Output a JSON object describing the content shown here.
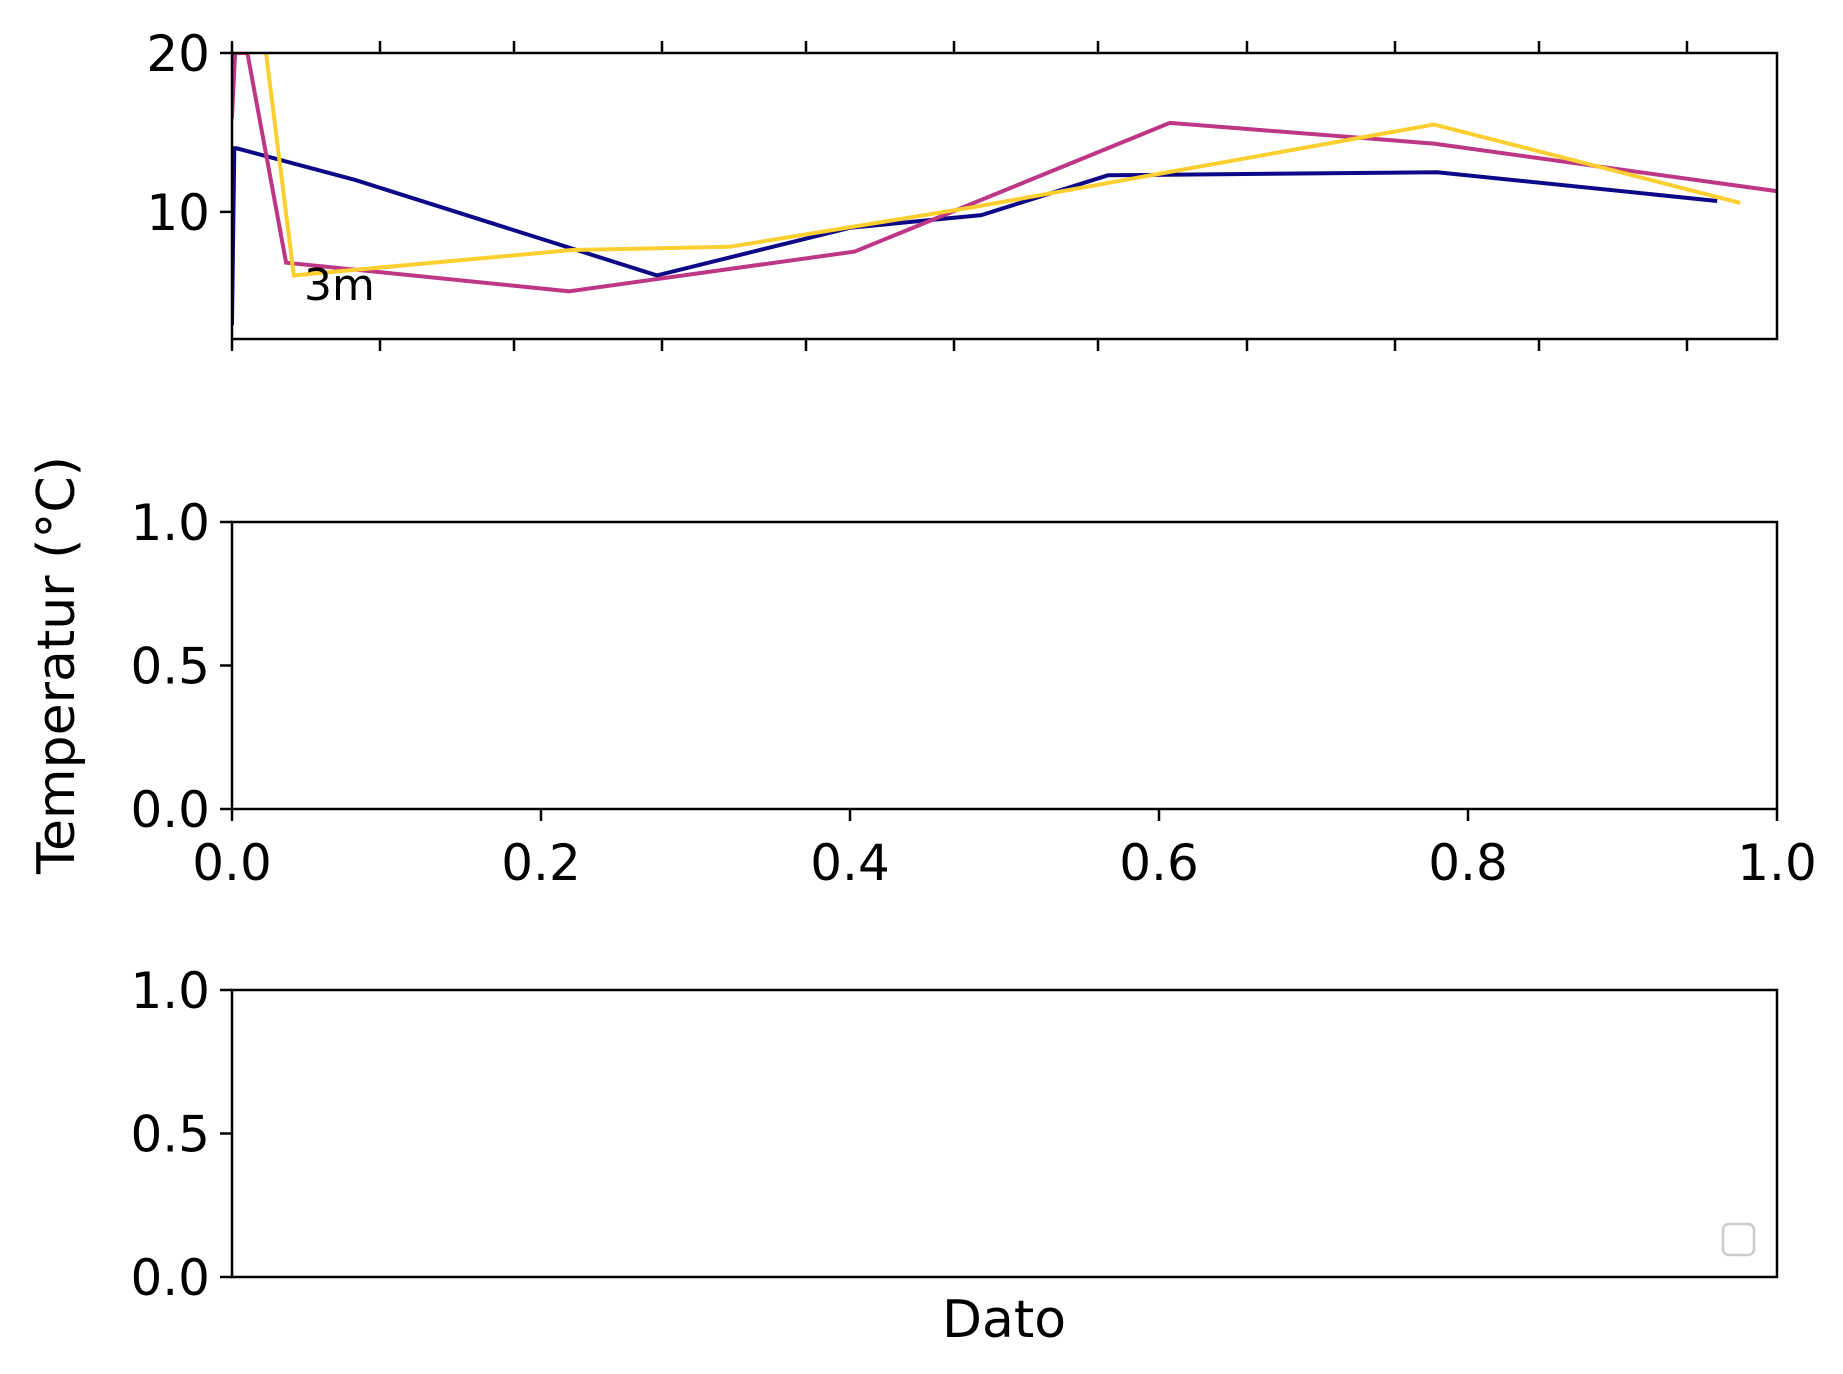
{
  "chart_data": [
    {
      "type": "line",
      "panel": "top",
      "ylim": [
        2,
        20
      ],
      "yticks": [
        "20",
        "10"
      ],
      "ytick_values": [
        20,
        10
      ],
      "xlim": [
        0,
        1
      ],
      "xticks_labeled": false,
      "annotation": "3m",
      "series": [
        {
          "color": "#0d0887",
          "x": [
            0.0,
            0.0015,
            0.003,
            0.08,
            0.275,
            0.4,
            0.485,
            0.567,
            0.78,
            0.96
          ],
          "y": [
            3,
            14.0,
            14.0,
            12.0,
            6.0,
            9.0,
            9.8,
            12.3,
            12.5,
            10.7
          ]
        },
        {
          "color": "#bd3786",
          "x": [
            0.0,
            0.002,
            0.01,
            0.035,
            0.218,
            0.403,
            0.607,
            0.778,
            1.0
          ],
          "y": [
            16.0,
            20.0,
            20.0,
            6.8,
            5.0,
            7.5,
            15.6,
            14.3,
            11.3
          ],
          "clip_below_start": true
        },
        {
          "color": "#fccf31",
          "x": [
            0.022,
            0.04,
            0.22,
            0.322,
            0.48,
            0.778,
            0.975
          ],
          "y": [
            20.0,
            6.0,
            7.6,
            7.8,
            10.3,
            15.5,
            10.6
          ]
        }
      ]
    },
    {
      "type": "line",
      "panel": "middle",
      "ylim": [
        0,
        1
      ],
      "yticks": [
        "1.0",
        "0.5",
        "0.0"
      ],
      "ytick_values": [
        1.0,
        0.5,
        0.0
      ],
      "xlim": [
        0,
        1
      ],
      "xticks": [
        "0.0",
        "0.2",
        "0.4",
        "0.6",
        "0.8",
        "1.0"
      ],
      "xtick_values": [
        0.0,
        0.2,
        0.4,
        0.6,
        0.8,
        1.0
      ],
      "series": []
    },
    {
      "type": "line",
      "panel": "bottom",
      "ylim": [
        0,
        1
      ],
      "yticks": [
        "1.0",
        "0.5",
        "0.0"
      ],
      "ytick_values": [
        1.0,
        0.5,
        0.0
      ],
      "xlabel": "Dato",
      "legend": "lower-right",
      "series": []
    }
  ],
  "ylabel": "Temperatur (°C)"
}
